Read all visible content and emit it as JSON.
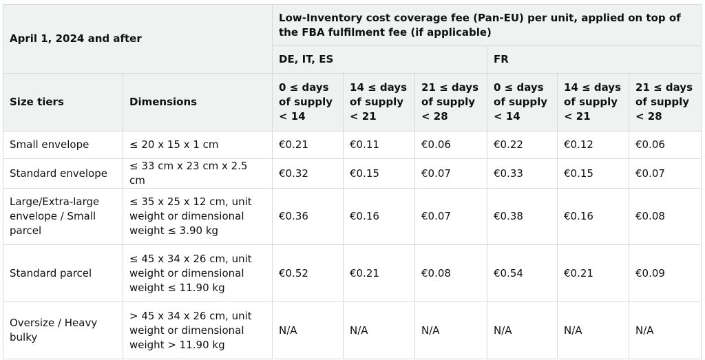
{
  "table": {
    "date_header": "April 1, 2024 and after",
    "fee_header": "Low-Inventory cost coverage fee (Pan-EU) per unit, applied on top of the FBA fulfilment fee (if applicable)",
    "region_headers": [
      "DE, IT, ES",
      "FR"
    ],
    "column_headers": {
      "size_tiers": "Size tiers",
      "dimensions": "Dimensions",
      "supply_ranges": [
        "0 ≤ days of supply < 14",
        "14 ≤ days of supply < 21",
        "21 ≤ days of supply < 28",
        "0 ≤ days of supply < 14",
        "14 ≤ days of supply < 21",
        "21 ≤ days of supply < 28"
      ]
    },
    "rows": [
      {
        "size_tier": "Small envelope",
        "dimensions": "≤ 20 x 15 x 1 cm",
        "fees": [
          "€0.21",
          "€0.11",
          "€0.06",
          "€0.22",
          "€0.12",
          "€0.06"
        ]
      },
      {
        "size_tier": "Standard envelope",
        "dimensions": "≤ 33 cm x 23 cm x 2.5 cm",
        "fees": [
          "€0.32",
          "€0.15",
          "€0.07",
          "€0.33",
          "€0.15",
          "€0.07"
        ]
      },
      {
        "size_tier": "Large/Extra-large envelope / Small parcel",
        "dimensions": "≤ 35 x 25 x 12 cm, unit weight or dimensional weight ≤ 3.90 kg",
        "fees": [
          "€0.36",
          "€0.16",
          "€0.07",
          "€0.38",
          "€0.16",
          "€0.08"
        ]
      },
      {
        "size_tier": "Standard parcel",
        "dimensions": "≤ 45 x 34 x 26 cm, unit weight or dimensional weight ≤ 11.90 kg",
        "fees": [
          "€0.52",
          "€0.21",
          "€0.08",
          "€0.54",
          "€0.21",
          "€0.09"
        ]
      },
      {
        "size_tier": "Oversize / Heavy bulky",
        "dimensions": "> 45 x 34 x 26 cm, unit weight or dimensional weight > 11.90 kg",
        "fees": [
          "N/A",
          "N/A",
          "N/A",
          "N/A",
          "N/A",
          "N/A"
        ]
      }
    ]
  }
}
